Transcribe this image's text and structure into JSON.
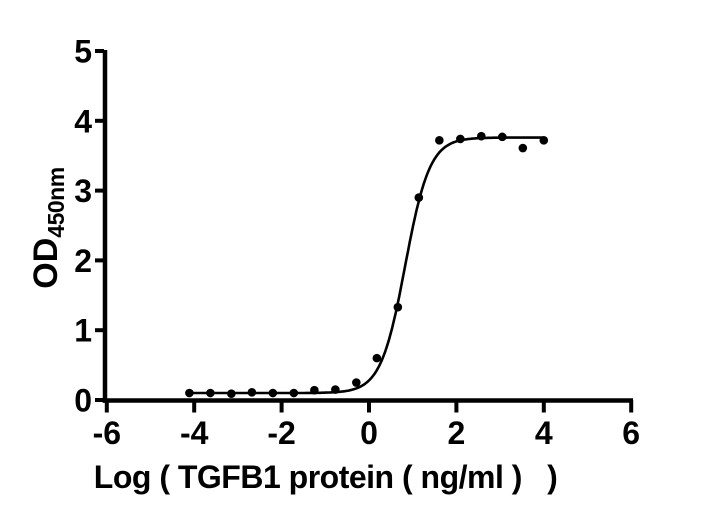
{
  "figure": {
    "background": "#ffffff",
    "axis_color": "#000000",
    "text_color": "#000000"
  },
  "chart_data": {
    "type": "scatter",
    "title": "",
    "xlabel": "Log ( TGFB1 protein ( ng/ml )   )",
    "ylabel": "OD",
    "ylabel_subscript": "450nm",
    "xlim": [
      -6,
      6
    ],
    "ylim": [
      0,
      5
    ],
    "x_ticks": [
      -6,
      -4,
      -2,
      0,
      2,
      4,
      6
    ],
    "y_ticks": [
      0,
      1,
      2,
      3,
      4,
      5
    ],
    "grid": false,
    "legend": "none",
    "marker": {
      "shape": "circle",
      "color": "#000000",
      "radius_px": 4.3
    },
    "points": [
      {
        "x": -4.11,
        "y": 0.1
      },
      {
        "x": -3.63,
        "y": 0.1
      },
      {
        "x": -3.15,
        "y": 0.09
      },
      {
        "x": -2.68,
        "y": 0.11
      },
      {
        "x": -2.2,
        "y": 0.1
      },
      {
        "x": -1.72,
        "y": 0.1
      },
      {
        "x": -1.25,
        "y": 0.14
      },
      {
        "x": -0.77,
        "y": 0.15
      },
      {
        "x": -0.29,
        "y": 0.25
      },
      {
        "x": 0.18,
        "y": 0.6
      },
      {
        "x": 0.66,
        "y": 1.33
      },
      {
        "x": 1.14,
        "y": 2.9
      },
      {
        "x": 1.61,
        "y": 3.72
      },
      {
        "x": 2.09,
        "y": 3.74
      },
      {
        "x": 2.57,
        "y": 3.78
      },
      {
        "x": 3.05,
        "y": 3.77
      },
      {
        "x": 3.52,
        "y": 3.61
      },
      {
        "x": 4.0,
        "y": 3.72
      }
    ],
    "fit_curve": {
      "model": "four_parameter_logistic",
      "bottom": 0.1,
      "top": 3.76,
      "logEC50": 0.83,
      "hill_slope": 1.55,
      "x_start": -4.11,
      "x_end": 4.0,
      "color": "#000000"
    }
  }
}
